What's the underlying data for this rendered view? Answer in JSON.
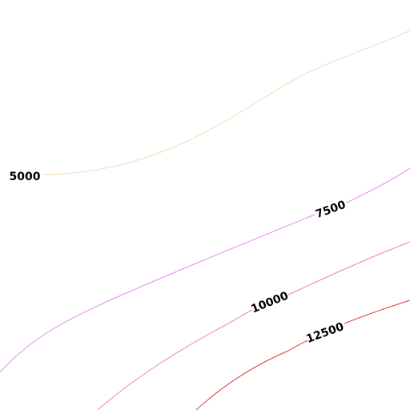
{
  "chart_data": {
    "type": "contour",
    "levels": [
      5000,
      7500,
      10000,
      12500
    ],
    "colors": [
      "#f6dcb6",
      "#e489f0",
      "#f080b4",
      "#e03a3a"
    ]
  }
}
